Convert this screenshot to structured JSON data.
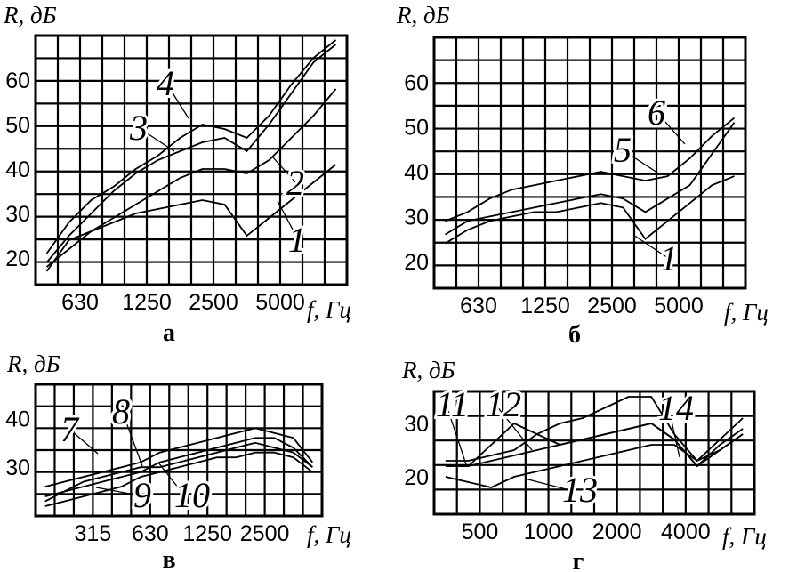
{
  "chart_data": [
    {
      "type": "line",
      "panel_label": "а",
      "ylabel": "R, дБ",
      "xlabel": "f, Гц",
      "x_tick_labels": [
        "630",
        "1250",
        "2500",
        "5000"
      ],
      "y_tick_labels": [
        "20",
        "30",
        "40",
        "50",
        "60"
      ],
      "x_scale": "log (one-third-octave grid)",
      "ylim": [
        14,
        70
      ],
      "grid": true,
      "x": [
        400,
        500,
        630,
        800,
        1000,
        1250,
        1600,
        2000,
        2500,
        3150,
        4000,
        5000,
        6300,
        8000
      ],
      "series": [
        {
          "name": "1",
          "values": [
            17,
            24,
            26,
            28,
            30,
            31,
            32,
            33,
            32,
            25,
            29,
            33,
            37,
            41
          ]
        },
        {
          "name": "2",
          "values": [
            18,
            22,
            26,
            29,
            32,
            35,
            38,
            40,
            40,
            39,
            42,
            47,
            52,
            58
          ]
        },
        {
          "name": "3",
          "values": [
            19,
            25,
            30,
            35,
            39,
            42,
            44,
            46,
            47,
            44,
            50,
            57,
            64,
            68
          ]
        },
        {
          "name": "4",
          "values": [
            21,
            28,
            33,
            36,
            40,
            43,
            47,
            50,
            49,
            47,
            52,
            59,
            65,
            69
          ]
        }
      ]
    },
    {
      "type": "line",
      "panel_label": "б",
      "ylabel": "R, дБ",
      "xlabel": "f, Гц",
      "x_tick_labels": [
        "630",
        "1250",
        "2500",
        "5000"
      ],
      "y_tick_labels": [
        "20",
        "30",
        "40",
        "50",
        "60"
      ],
      "x_scale": "log (one-third-octave grid)",
      "ylim": [
        14,
        70
      ],
      "grid": true,
      "x": [
        400,
        500,
        630,
        800,
        1000,
        1250,
        1600,
        2000,
        2500,
        3150,
        4000,
        5000,
        6300,
        8000
      ],
      "series": [
        {
          "name": "1",
          "values": [
            24,
            27,
            29,
            30,
            31,
            31,
            32,
            33,
            32,
            25,
            29,
            33,
            37,
            39
          ]
        },
        {
          "name": "5",
          "values": [
            26,
            29,
            30,
            31,
            32,
            33,
            34,
            35,
            34,
            31,
            34,
            37,
            44,
            51
          ]
        },
        {
          "name": "6",
          "values": [
            29,
            31,
            34,
            36,
            37,
            38,
            39,
            40,
            39,
            38,
            39,
            43,
            48,
            52
          ]
        }
      ]
    },
    {
      "type": "line",
      "panel_label": "в",
      "ylabel": "R, дБ",
      "xlabel": "f, Гц",
      "x_tick_labels": [
        "315",
        "630",
        "1250",
        "2500"
      ],
      "y_tick_labels": [
        "30",
        "40"
      ],
      "x_scale": "log (one-third-octave grid)",
      "ylim": [
        20,
        47
      ],
      "grid": true,
      "x": [
        160,
        200,
        250,
        315,
        400,
        500,
        630,
        800,
        1000,
        1250,
        1600,
        2000,
        2500,
        3150,
        4000
      ],
      "series": [
        {
          "name": "7",
          "values": [
            24,
            25,
            26,
            27,
            28,
            29,
            31,
            32,
            33,
            34,
            35,
            36,
            36,
            34,
            30
          ]
        },
        {
          "name": "8",
          "values": [
            26,
            27,
            28,
            29,
            30,
            31,
            33,
            34,
            35,
            36,
            37,
            38,
            37,
            36,
            31
          ]
        },
        {
          "name": "9",
          "values": [
            22,
            23,
            24,
            25,
            26,
            28,
            29,
            30,
            31,
            32,
            32,
            33,
            33,
            32,
            29
          ]
        },
        {
          "name": "10",
          "values": [
            23,
            25,
            27,
            28,
            29,
            30,
            30,
            31,
            32,
            33,
            34,
            35,
            34,
            33,
            30
          ]
        }
      ]
    },
    {
      "type": "line",
      "panel_label": "г",
      "ylabel": "R, дБ",
      "xlabel": "f, Гц",
      "x_tick_labels": [
        "500",
        "1000",
        "2000",
        "4000"
      ],
      "y_tick_labels": [
        "20",
        "30"
      ],
      "x_scale": "log (one-third-octave grid)",
      "ylim": [
        13,
        36
      ],
      "grid": true,
      "x": [
        315,
        400,
        500,
        630,
        800,
        1000,
        1250,
        1600,
        2000,
        2500,
        3150,
        4000,
        5000,
        6300
      ],
      "series": [
        {
          "name": "11",
          "values": [
            23,
            23,
            24,
            25,
            28,
            30,
            31,
            33,
            35,
            35,
            28,
            23,
            27,
            31
          ]
        },
        {
          "name": "12",
          "values": [
            22,
            22,
            26,
            30,
            28,
            26,
            27,
            28,
            29,
            30,
            27,
            22,
            26,
            29
          ]
        },
        {
          "name": "13",
          "values": [
            20,
            19,
            18,
            20,
            21,
            22,
            23,
            24,
            25,
            26,
            26,
            23,
            25,
            28
          ]
        },
        {
          "name": "14",
          "values": [
            22,
            22,
            23,
            24,
            25,
            26,
            27,
            28,
            29,
            30,
            27,
            22,
            25,
            28
          ]
        }
      ]
    }
  ]
}
